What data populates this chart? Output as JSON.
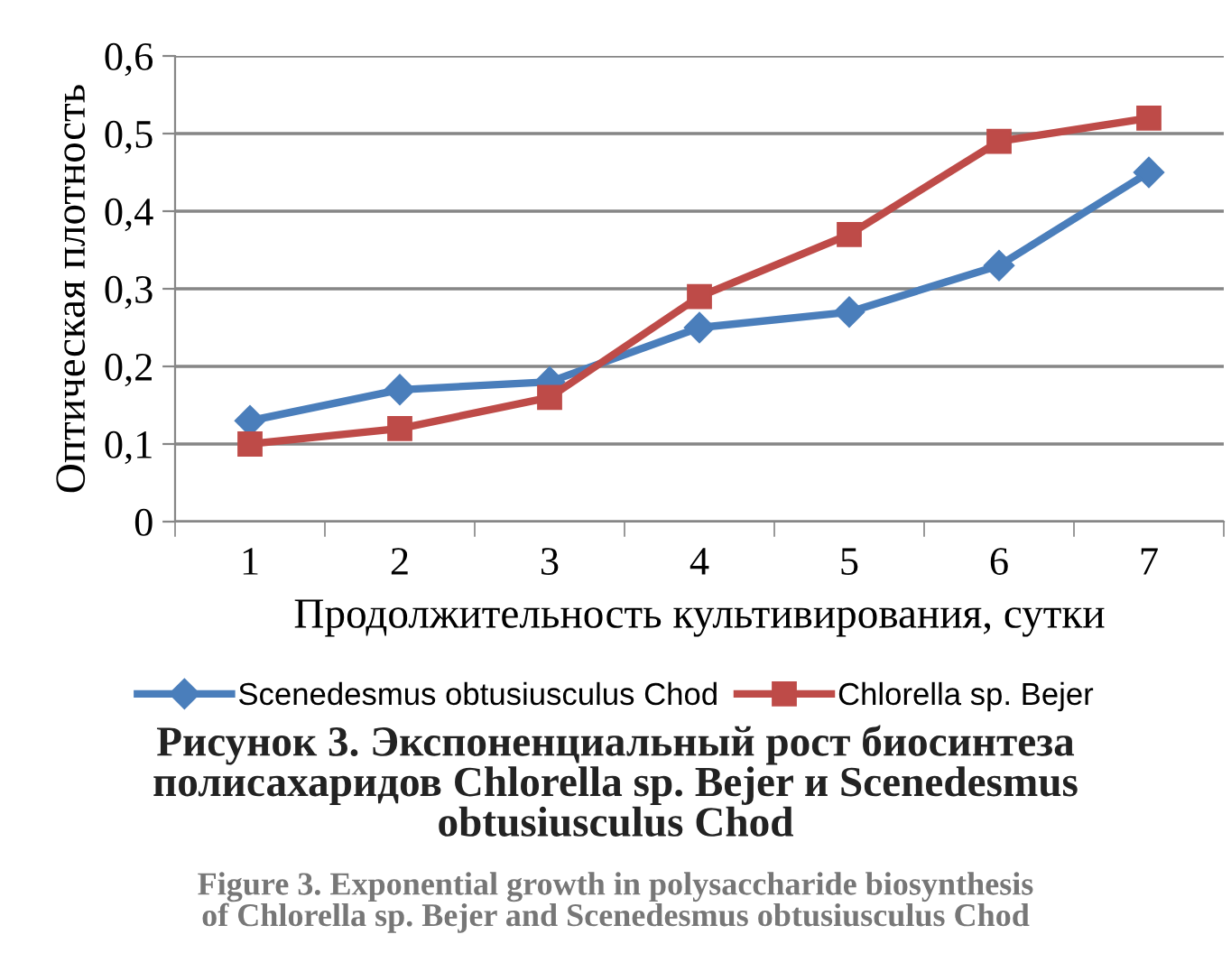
{
  "chart_data": {
    "type": "line",
    "xlabel": "Продолжительность культивирования, сутки",
    "ylabel": "Оптическая плотность",
    "categories": [
      "1",
      "2",
      "3",
      "4",
      "5",
      "6",
      "7"
    ],
    "series": [
      {
        "name": "Scenedesmus obtusiusculus Chod",
        "color": "#4a7ebb",
        "marker": "diamond",
        "values": [
          0.13,
          0.17,
          0.18,
          0.25,
          0.27,
          0.33,
          0.45
        ]
      },
      {
        "name": "Chlorella sp. Bejer",
        "color": "#be4b48",
        "marker": "square",
        "values": [
          0.1,
          0.12,
          0.16,
          0.29,
          0.37,
          0.49,
          0.52
        ]
      }
    ],
    "ylim": [
      0,
      0.6
    ],
    "yticks": [
      0,
      {
        "value": 0.1,
        "label": "0,1"
      },
      {
        "value": 0.2,
        "label": "0,2"
      },
      {
        "value": 0.3,
        "label": "0,3"
      },
      {
        "value": 0.4,
        "label": "0,4"
      },
      {
        "value": 0.5,
        "label": "0,5"
      },
      {
        "value": 0.6,
        "label": "0,6"
      }
    ],
    "grid": "y",
    "legend": "bottom",
    "line_style": "solid",
    "annotations": [
      "Рисунок 3. Экспоненциальный рост биосинтеза\nполисахаридов Chlorella sp. Bejer и Scenedesmus\nobtusiusculus Chod",
      "Figure 3. Exponential growth in polysaccharide biosynthesis\nof Chlorella sp. Bejer and Scenedesmus obtusiusculus Chod"
    ]
  }
}
